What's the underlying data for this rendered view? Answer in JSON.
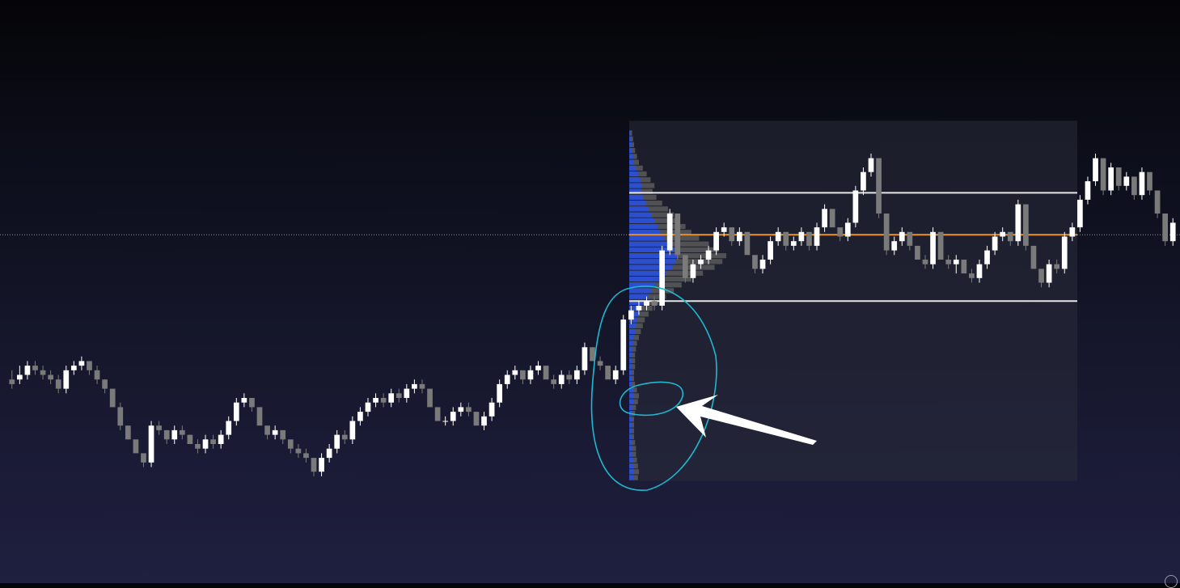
{
  "chart_data": {
    "type": "candlestick",
    "price_range": [
      0,
      100
    ],
    "colors": {
      "bull": "#ffffff",
      "bear": "#7a7a7a",
      "profile_value_area": "#2a4fd6",
      "profile_outside": "#5a5a5a",
      "poc_line": "#f0932b",
      "value_area_lines": "#e6e6e6",
      "range_box": "#2a2c3a",
      "annotation": "#1fb8d0",
      "arrow": "#ffffff"
    },
    "current_price": 75.4,
    "volume_profile": {
      "value_area_high": 84.5,
      "poc": 75.4,
      "value_area_low": 61.0,
      "profile_top": 98,
      "profile_bottom": 22,
      "volumes": [
        3,
        4,
        5,
        6,
        8,
        10,
        14,
        18,
        22,
        26,
        24,
        28,
        34,
        40,
        46,
        52,
        58,
        64,
        72,
        82,
        92,
        100,
        96,
        88,
        76,
        64,
        54,
        46,
        38,
        30,
        24,
        20,
        16,
        14,
        12,
        10,
        8,
        7,
        6,
        6,
        6,
        5,
        5,
        6,
        8,
        10,
        9,
        7,
        6,
        5,
        5,
        5,
        5,
        6,
        7,
        7,
        8,
        9,
        10,
        9
      ]
    },
    "candles": [
      [
        44,
        46,
        43,
        42
      ],
      [
        44,
        47,
        45,
        43
      ],
      [
        45,
        48,
        47,
        44
      ],
      [
        47,
        48,
        46,
        45
      ],
      [
        46,
        47,
        45,
        44
      ],
      [
        45,
        46,
        44,
        43
      ],
      [
        44,
        45,
        42,
        41
      ],
      [
        42,
        47,
        46,
        41
      ],
      [
        46,
        48,
        47,
        45
      ],
      [
        47,
        49,
        48,
        46
      ],
      [
        48,
        47,
        46,
        45
      ],
      [
        46,
        47,
        44,
        43
      ],
      [
        44,
        44,
        42,
        41
      ],
      [
        42,
        40,
        38,
        39
      ],
      [
        38,
        39,
        34,
        33
      ],
      [
        34,
        33,
        31,
        32
      ],
      [
        31,
        30,
        28,
        29
      ],
      [
        28,
        27,
        26,
        25
      ],
      [
        26,
        35,
        34,
        25
      ],
      [
        34,
        35,
        33,
        32
      ],
      [
        33,
        33,
        31,
        30
      ],
      [
        31,
        34,
        33,
        30
      ],
      [
        33,
        34,
        32,
        31
      ],
      [
        32,
        32,
        30,
        31
      ],
      [
        30,
        31,
        29,
        28
      ],
      [
        29,
        32,
        31,
        28
      ],
      [
        31,
        32,
        30,
        29
      ],
      [
        30,
        33,
        32,
        29
      ],
      [
        32,
        36,
        35,
        31
      ],
      [
        35,
        40,
        39,
        34
      ],
      [
        39,
        41,
        40,
        38
      ],
      [
        40,
        40,
        38,
        37
      ],
      [
        38,
        37,
        34,
        35
      ],
      [
        34,
        33,
        32,
        31
      ],
      [
        32,
        34,
        33,
        31
      ],
      [
        33,
        33,
        31,
        30
      ],
      [
        31,
        30,
        29,
        28
      ],
      [
        29,
        30,
        28,
        27
      ],
      [
        28,
        29,
        27,
        26
      ],
      [
        27,
        25,
        24,
        23
      ],
      [
        24,
        28,
        27,
        23
      ],
      [
        27,
        30,
        29,
        26
      ],
      [
        29,
        33,
        32,
        28
      ],
      [
        32,
        33,
        31,
        30
      ],
      [
        31,
        36,
        35,
        30
      ],
      [
        35,
        38,
        37,
        34
      ],
      [
        37,
        40,
        39,
        36
      ],
      [
        39,
        41,
        40,
        38
      ],
      [
        40,
        41,
        39,
        38
      ],
      [
        39,
        42,
        41,
        38
      ],
      [
        41,
        42,
        40,
        39
      ],
      [
        40,
        43,
        42,
        39
      ],
      [
        42,
        44,
        43,
        41
      ],
      [
        43,
        44,
        42,
        41
      ],
      [
        42,
        41,
        38,
        39
      ],
      [
        38,
        37,
        35,
        36
      ],
      [
        35,
        36,
        35,
        34
      ],
      [
        35,
        38,
        37,
        34
      ],
      [
        37,
        39,
        38,
        36
      ],
      [
        38,
        39,
        37,
        36
      ],
      [
        37,
        36,
        34,
        35
      ],
      [
        34,
        37,
        36,
        33
      ],
      [
        36,
        40,
        39,
        35
      ],
      [
        39,
        44,
        43,
        38
      ],
      [
        43,
        46,
        45,
        42
      ],
      [
        45,
        47,
        46,
        44
      ],
      [
        46,
        45,
        44,
        43
      ],
      [
        44,
        47,
        46,
        43
      ],
      [
        46,
        48,
        47,
        45
      ],
      [
        47,
        46,
        44,
        45
      ],
      [
        44,
        45,
        43,
        42
      ],
      [
        43,
        46,
        45,
        42
      ],
      [
        45,
        46,
        44,
        43
      ],
      [
        44,
        47,
        46,
        43
      ],
      [
        46,
        52,
        51,
        45
      ],
      [
        51,
        50,
        48,
        49
      ],
      [
        48,
        49,
        47,
        46
      ],
      [
        47,
        46,
        44,
        45
      ],
      [
        44,
        47,
        46,
        43
      ],
      [
        46,
        58,
        57,
        45
      ],
      [
        57,
        60,
        59,
        56
      ],
      [
        59,
        61,
        60,
        58
      ],
      [
        60,
        62,
        61,
        59
      ],
      [
        61,
        62,
        60,
        59
      ],
      [
        60,
        73,
        72,
        59
      ],
      [
        72,
        81,
        80,
        71
      ],
      [
        80,
        75,
        71,
        70
      ],
      [
        71,
        69,
        66,
        65
      ],
      [
        66,
        70,
        69,
        65
      ],
      [
        69,
        71,
        70,
        68
      ],
      [
        70,
        73,
        72,
        69
      ],
      [
        72,
        77,
        76,
        71
      ],
      [
        76,
        78,
        77,
        75
      ],
      [
        77,
        76,
        74,
        73
      ],
      [
        74,
        77,
        76,
        73
      ],
      [
        76,
        75,
        71,
        72
      ],
      [
        71,
        70,
        68,
        67
      ],
      [
        68,
        71,
        70,
        67
      ],
      [
        70,
        75,
        74,
        69
      ],
      [
        74,
        77,
        76,
        73
      ],
      [
        76,
        74,
        73,
        72
      ],
      [
        73,
        75,
        74,
        72
      ],
      [
        74,
        77,
        76,
        73
      ],
      [
        76,
        75,
        73,
        72
      ],
      [
        73,
        78,
        77,
        72
      ],
      [
        77,
        82,
        81,
        76
      ],
      [
        81,
        80,
        77,
        78
      ],
      [
        77,
        76,
        75,
        74
      ],
      [
        75,
        79,
        78,
        74
      ],
      [
        78,
        86,
        85,
        77
      ],
      [
        85,
        90,
        89,
        84
      ],
      [
        89,
        93,
        92,
        88
      ],
      [
        92,
        91,
        80,
        79
      ],
      [
        80,
        77,
        72,
        71
      ],
      [
        72,
        75,
        74,
        71
      ],
      [
        74,
        77,
        76,
        73
      ],
      [
        76,
        75,
        73,
        72
      ],
      [
        73,
        72,
        70,
        71
      ],
      [
        70,
        71,
        69,
        68
      ],
      [
        69,
        77,
        76,
        68
      ],
      [
        76,
        75,
        70,
        71
      ],
      [
        70,
        71,
        69,
        68
      ],
      [
        69,
        71,
        70,
        67
      ],
      [
        70,
        69,
        67,
        68
      ],
      [
        67,
        68,
        66,
        65
      ],
      [
        66,
        70,
        69,
        65
      ],
      [
        69,
        73,
        72,
        68
      ],
      [
        72,
        76,
        75,
        71
      ],
      [
        75,
        77,
        76,
        74
      ],
      [
        76,
        75,
        74,
        73
      ],
      [
        74,
        83,
        82,
        73
      ],
      [
        82,
        74,
        73,
        72
      ],
      [
        73,
        71,
        68,
        69
      ],
      [
        68,
        67,
        65,
        64
      ],
      [
        65,
        70,
        69,
        64
      ],
      [
        69,
        70,
        68,
        67
      ],
      [
        68,
        76,
        75,
        67
      ],
      [
        75,
        78,
        77,
        74
      ],
      [
        77,
        84,
        83,
        76
      ],
      [
        83,
        88,
        87,
        82
      ],
      [
        87,
        93,
        92,
        86
      ],
      [
        92,
        86,
        85,
        84
      ],
      [
        85,
        91,
        90,
        84
      ],
      [
        90,
        87,
        86,
        85
      ],
      [
        86,
        89,
        88,
        85
      ],
      [
        88,
        86,
        84,
        83
      ],
      [
        84,
        90,
        89,
        83
      ],
      [
        89,
        88,
        85,
        84
      ],
      [
        85,
        83,
        80,
        79
      ],
      [
        80,
        76,
        74,
        73
      ],
      [
        74,
        79,
        78,
        73
      ]
    ]
  }
}
